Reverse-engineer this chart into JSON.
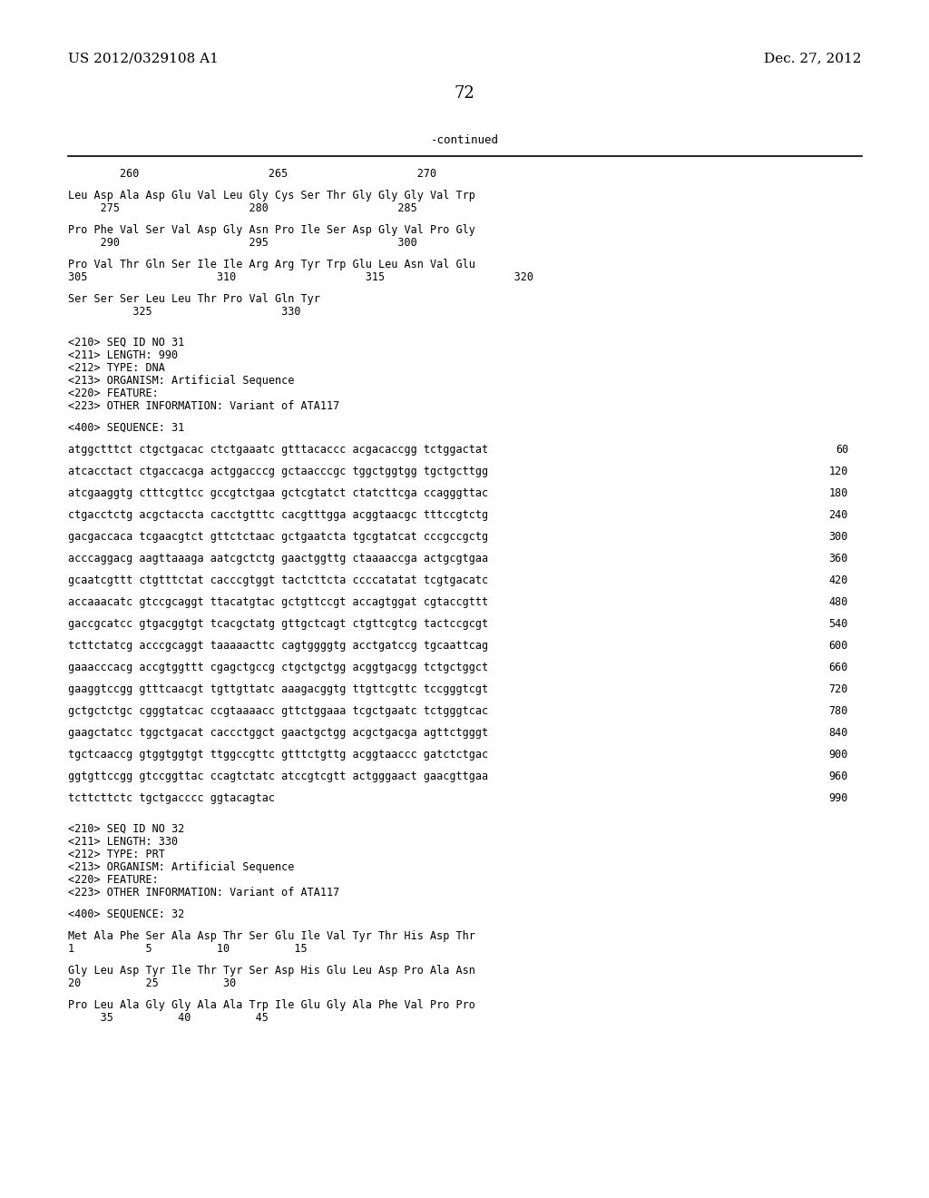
{
  "header_left": "US 2012/0329108 A1",
  "header_right": "Dec. 27, 2012",
  "page_number": "72",
  "continued_label": "-continued",
  "background_color": "#ffffff",
  "text_color": "#000000",
  "lines": [
    {
      "type": "numbering",
      "text": "        260                    265                    270"
    },
    {
      "type": "gap"
    },
    {
      "type": "sequence_aa",
      "text": "Leu Asp Ala Asp Glu Val Leu Gly Cys Ser Thr Gly Gly Gly Val Trp"
    },
    {
      "type": "numbering",
      "text": "     275                    280                    285"
    },
    {
      "type": "gap"
    },
    {
      "type": "sequence_aa",
      "text": "Pro Phe Val Ser Val Asp Gly Asn Pro Ile Ser Asp Gly Val Pro Gly"
    },
    {
      "type": "numbering",
      "text": "     290                    295                    300"
    },
    {
      "type": "gap"
    },
    {
      "type": "sequence_aa",
      "text": "Pro Val Thr Gln Ser Ile Ile Arg Arg Tyr Trp Glu Leu Asn Val Glu"
    },
    {
      "type": "numbering",
      "text": "305                    310                    315                    320"
    },
    {
      "type": "gap"
    },
    {
      "type": "sequence_aa",
      "text": "Ser Ser Ser Leu Leu Thr Pro Val Gln Tyr"
    },
    {
      "type": "numbering",
      "text": "          325                    330"
    },
    {
      "type": "gap"
    },
    {
      "type": "gap"
    },
    {
      "type": "meta",
      "text": "<210> SEQ ID NO 31"
    },
    {
      "type": "meta",
      "text": "<211> LENGTH: 990"
    },
    {
      "type": "meta",
      "text": "<212> TYPE: DNA"
    },
    {
      "type": "meta",
      "text": "<213> ORGANISM: Artificial Sequence"
    },
    {
      "type": "meta",
      "text": "<220> FEATURE:"
    },
    {
      "type": "meta",
      "text": "<223> OTHER INFORMATION: Variant of ATA117"
    },
    {
      "type": "gap"
    },
    {
      "type": "meta",
      "text": "<400> SEQUENCE: 31"
    },
    {
      "type": "gap"
    },
    {
      "type": "sequence_dna",
      "text": "atggctttct ctgctgacac ctctgaaatc gtttacaccc acgacaccgg tctggactat",
      "num": "60"
    },
    {
      "type": "gap"
    },
    {
      "type": "sequence_dna",
      "text": "atcacctact ctgaccacga actggacccg gctaacccgc tggctggtgg tgctgcttgg",
      "num": "120"
    },
    {
      "type": "gap"
    },
    {
      "type": "sequence_dna",
      "text": "atcgaaggtg ctttcgttcc gccgtctgaa gctcgtatct ctatcttcga ccagggttac",
      "num": "180"
    },
    {
      "type": "gap"
    },
    {
      "type": "sequence_dna",
      "text": "ctgacctctg acgctaccta cacctgtttc cacgtttgga acggtaacgc tttccgtctg",
      "num": "240"
    },
    {
      "type": "gap"
    },
    {
      "type": "sequence_dna",
      "text": "gacgaccaca tcgaacgtct gttctctaac gctgaatcta tgcgtatcat cccgccgctg",
      "num": "300"
    },
    {
      "type": "gap"
    },
    {
      "type": "sequence_dna",
      "text": "acccaggacg aagttaaaga aatcgctctg gaactggttg ctaaaaccga actgcgtgaa",
      "num": "360"
    },
    {
      "type": "gap"
    },
    {
      "type": "sequence_dna",
      "text": "gcaatcgttt ctgtttctat cacccgtggt tactcttcta ccccatatat tcgtgacatc",
      "num": "420"
    },
    {
      "type": "gap"
    },
    {
      "type": "sequence_dna",
      "text": "accaaacatc gtccgcaggt ttacatgtac gctgttccgt accagtggat cgtaccgttt",
      "num": "480"
    },
    {
      "type": "gap"
    },
    {
      "type": "sequence_dna",
      "text": "gaccgcatcc gtgacggtgt tcacgctatg gttgctcagt ctgttcgtcg tactccgcgt",
      "num": "540"
    },
    {
      "type": "gap"
    },
    {
      "type": "sequence_dna",
      "text": "tcttctatcg acccgcaggt taaaaacttc cagtggggtg acctgatccg tgcaattcag",
      "num": "600"
    },
    {
      "type": "gap"
    },
    {
      "type": "sequence_dna",
      "text": "gaaacccacg accgtggttt cgagctgccg ctgctgctgg acggtgacgg tctgctggct",
      "num": "660"
    },
    {
      "type": "gap"
    },
    {
      "type": "sequence_dna",
      "text": "gaaggtccgg gtttcaacgt tgttgttatc aaagacggtg ttgttcgttc tccgggtcgt",
      "num": "720"
    },
    {
      "type": "gap"
    },
    {
      "type": "sequence_dna",
      "text": "gctgctctgc cgggtatcac ccgtaaaacc gttctggaaa tcgctgaatc tctgggtcac",
      "num": "780"
    },
    {
      "type": "gap"
    },
    {
      "type": "sequence_dna",
      "text": "gaagctatcc tggctgacat caccctggct gaactgctgg acgctgacga agttctgggt",
      "num": "840"
    },
    {
      "type": "gap"
    },
    {
      "type": "sequence_dna",
      "text": "tgctcaaccg gtggtggtgt ttggccgttc gtttctgttg acggtaaccc gatctctgac",
      "num": "900"
    },
    {
      "type": "gap"
    },
    {
      "type": "sequence_dna",
      "text": "ggtgttccgg gtccggttac ccagtctatc atccgtcgtt actgggaact gaacgttgaa",
      "num": "960"
    },
    {
      "type": "gap"
    },
    {
      "type": "sequence_dna",
      "text": "tcttcttctc tgctgacccc ggtacagtac",
      "num": "990"
    },
    {
      "type": "gap"
    },
    {
      "type": "gap"
    },
    {
      "type": "meta",
      "text": "<210> SEQ ID NO 32"
    },
    {
      "type": "meta",
      "text": "<211> LENGTH: 330"
    },
    {
      "type": "meta",
      "text": "<212> TYPE: PRT"
    },
    {
      "type": "meta",
      "text": "<213> ORGANISM: Artificial Sequence"
    },
    {
      "type": "meta",
      "text": "<220> FEATURE:"
    },
    {
      "type": "meta",
      "text": "<223> OTHER INFORMATION: Variant of ATA117"
    },
    {
      "type": "gap"
    },
    {
      "type": "meta",
      "text": "<400> SEQUENCE: 32"
    },
    {
      "type": "gap"
    },
    {
      "type": "sequence_aa",
      "text": "Met Ala Phe Ser Ala Asp Thr Ser Glu Ile Val Tyr Thr His Asp Thr"
    },
    {
      "type": "numbering",
      "text": "1           5          10          15"
    },
    {
      "type": "gap"
    },
    {
      "type": "sequence_aa",
      "text": "Gly Leu Asp Tyr Ile Thr Tyr Ser Asp His Glu Leu Asp Pro Ala Asn"
    },
    {
      "type": "numbering",
      "text": "20          25          30"
    },
    {
      "type": "gap"
    },
    {
      "type": "sequence_aa",
      "text": "Pro Leu Ala Gly Gly Ala Ala Trp Ile Glu Gly Ala Phe Val Pro Pro"
    },
    {
      "type": "numbering",
      "text": "     35          40          45"
    }
  ]
}
